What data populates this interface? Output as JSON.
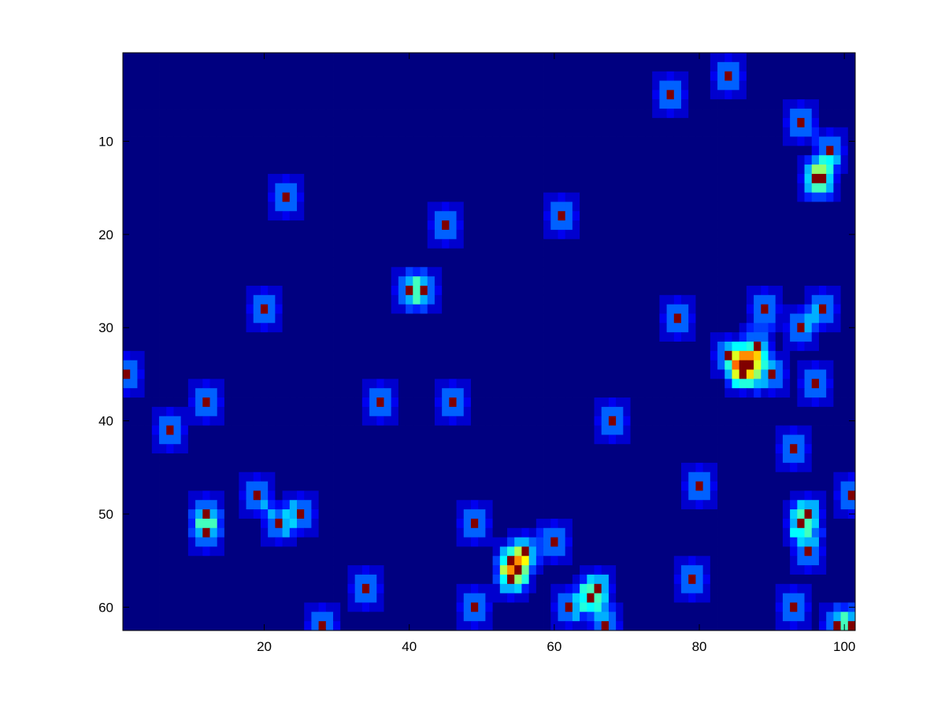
{
  "chart_data": {
    "type": "heatmap",
    "title": "",
    "xlabel": "",
    "ylabel": "",
    "xlim": [
      0.5,
      101.5
    ],
    "ylim": [
      62.5,
      0.5
    ],
    "y_axis_direction": "down",
    "colormap": "jet",
    "grid": false,
    "x_ticks": [
      20,
      40,
      60,
      80,
      100
    ],
    "y_ticks": [
      10,
      20,
      30,
      40,
      50,
      60
    ],
    "x_tick_labels": [
      "20",
      "40",
      "60",
      "80",
      "100"
    ],
    "y_tick_labels": [
      "10",
      "20",
      "30",
      "40",
      "50",
      "60"
    ],
    "background_value": 0.0,
    "peak_value": 1.0,
    "kernel_weights": [
      0.22,
      0.11,
      0.03
    ],
    "peaks": [
      [
        84,
        3
      ],
      [
        76,
        5
      ],
      [
        94,
        8
      ],
      [
        98,
        11
      ],
      [
        96,
        14
      ],
      [
        97,
        14
      ],
      [
        23,
        16
      ],
      [
        61,
        18
      ],
      [
        45,
        19
      ],
      [
        40,
        26
      ],
      [
        42,
        26
      ],
      [
        20,
        28
      ],
      [
        89,
        28
      ],
      [
        97,
        28
      ],
      [
        77,
        29
      ],
      [
        94,
        30
      ],
      [
        88,
        32
      ],
      [
        84,
        33
      ],
      [
        86,
        34
      ],
      [
        87,
        34
      ],
      [
        86,
        35
      ],
      [
        90,
        35
      ],
      [
        1,
        35
      ],
      [
        96,
        36
      ],
      [
        12,
        38
      ],
      [
        36,
        38
      ],
      [
        46,
        38
      ],
      [
        68,
        40
      ],
      [
        7,
        41
      ],
      [
        93,
        43
      ],
      [
        80,
        47
      ],
      [
        19,
        48
      ],
      [
        101,
        48
      ],
      [
        12,
        50
      ],
      [
        25,
        50
      ],
      [
        95,
        50
      ],
      [
        22,
        51
      ],
      [
        49,
        51
      ],
      [
        94,
        51
      ],
      [
        12,
        52
      ],
      [
        60,
        53
      ],
      [
        56,
        54
      ],
      [
        95,
        54
      ],
      [
        54,
        55
      ],
      [
        55,
        56
      ],
      [
        54,
        57
      ],
      [
        79,
        57
      ],
      [
        34,
        58
      ],
      [
        66,
        58
      ],
      [
        65,
        59
      ],
      [
        49,
        60
      ],
      [
        62,
        60
      ],
      [
        93,
        60
      ],
      [
        28,
        62
      ],
      [
        67,
        62
      ],
      [
        99,
        62
      ],
      [
        101,
        62
      ]
    ]
  }
}
